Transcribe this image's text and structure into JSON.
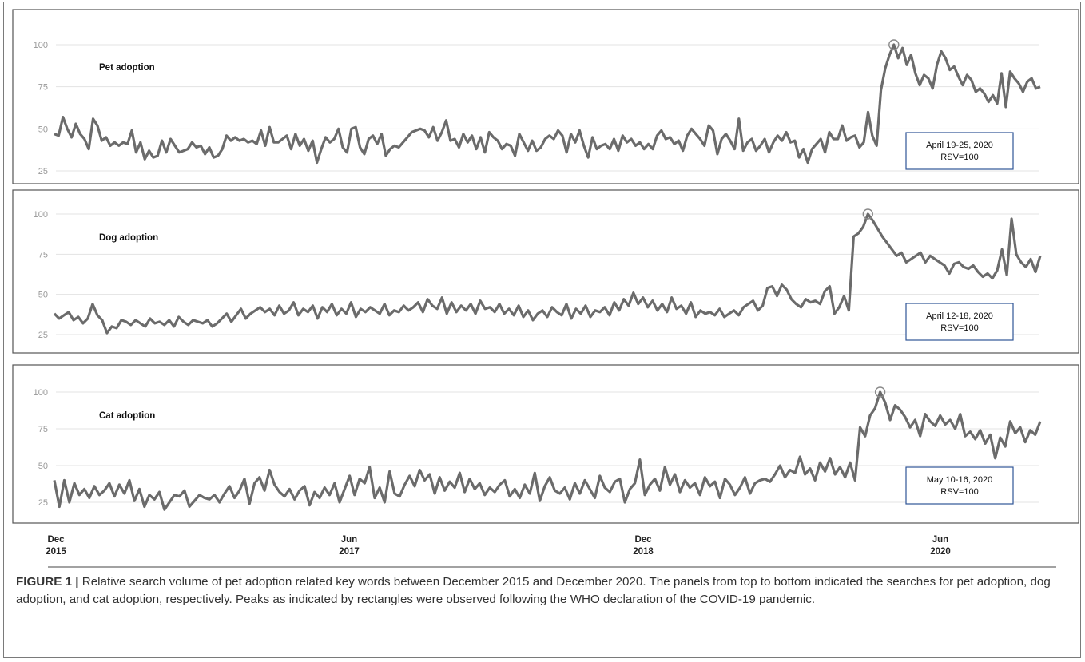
{
  "chart_data": [
    {
      "type": "line",
      "title": "Pet adoption",
      "yticks": [
        "100",
        "75",
        "50",
        "25"
      ],
      "ylim": [
        25,
        100
      ],
      "grid": true,
      "xlim": [
        "2015-12",
        "2020-12"
      ],
      "peak": {
        "date": "April 19-25, 2020",
        "value": 100
      },
      "annotation": [
        "April 19-25, 2020",
        "RSV=100"
      ],
      "series": [
        {
          "values": [
            47,
            46,
            57,
            50,
            45,
            53,
            47,
            44,
            38,
            56,
            52,
            43,
            45,
            40,
            42,
            40,
            42,
            41,
            49,
            36,
            42,
            32,
            37,
            33,
            34,
            43,
            36,
            44,
            40,
            36,
            37,
            38,
            42,
            39,
            40,
            35,
            39,
            33,
            34,
            38,
            46,
            43,
            45,
            43,
            44,
            42,
            43,
            41,
            49,
            40,
            51,
            42,
            42,
            44,
            46,
            38,
            47,
            40,
            44,
            37,
            43,
            30,
            38,
            45,
            42,
            44,
            50,
            39,
            36,
            50,
            51,
            39,
            35,
            44,
            46,
            41,
            47,
            34,
            38,
            40,
            39,
            42,
            45,
            48,
            49,
            50,
            49,
            45,
            51,
            43,
            48,
            55,
            43,
            44,
            39,
            47,
            42,
            46,
            38,
            45,
            36,
            48,
            45,
            43,
            38,
            41,
            40,
            34,
            47,
            42,
            37,
            43,
            37,
            39,
            44,
            46,
            44,
            49,
            46,
            36,
            47,
            42,
            49,
            40,
            33,
            45,
            38,
            40,
            41,
            38,
            44,
            37,
            46,
            42,
            44,
            40,
            42,
            38,
            41,
            38,
            46,
            49,
            44,
            45,
            41,
            43,
            37,
            46,
            50,
            47,
            44,
            40,
            52,
            49,
            35,
            44,
            47,
            43,
            38,
            56,
            37,
            42,
            44,
            37,
            40,
            44,
            36,
            42,
            46,
            43,
            48,
            42,
            43,
            33,
            38,
            30,
            38,
            41,
            44,
            36,
            48,
            44,
            44,
            52,
            43,
            45,
            46,
            39,
            42,
            60,
            46,
            40,
            73,
            86,
            94,
            100,
            92,
            98,
            88,
            94,
            83,
            76,
            82,
            80,
            74,
            88,
            96,
            92,
            85,
            87,
            81,
            76,
            82,
            79,
            72,
            74,
            71,
            66,
            70,
            65,
            83,
            63,
            84,
            80,
            77,
            72,
            78,
            80,
            74,
            75
          ]
        }
      ]
    },
    {
      "type": "line",
      "title": "Dog adoption",
      "yticks": [
        "100",
        "75",
        "50",
        "25"
      ],
      "ylim": [
        25,
        100
      ],
      "grid": true,
      "xlim": [
        "2015-12",
        "2020-12"
      ],
      "peak": {
        "date": "April 12-18, 2020",
        "value": 100
      },
      "annotation": [
        "April 12-18, 2020",
        "RSV=100"
      ],
      "series": [
        {
          "values": [
            38,
            35,
            37,
            39,
            34,
            36,
            32,
            35,
            44,
            37,
            34,
            26,
            30,
            29,
            34,
            33,
            31,
            34,
            32,
            30,
            35,
            32,
            33,
            31,
            34,
            30,
            36,
            33,
            31,
            34,
            33,
            32,
            34,
            30,
            32,
            35,
            38,
            33,
            37,
            41,
            35,
            38,
            40,
            42,
            39,
            41,
            37,
            43,
            38,
            40,
            45,
            37,
            41,
            39,
            43,
            35,
            42,
            39,
            44,
            37,
            41,
            38,
            45,
            36,
            41,
            39,
            42,
            40,
            38,
            44,
            37,
            40,
            39,
            43,
            40,
            42,
            45,
            39,
            47,
            43,
            41,
            48,
            38,
            45,
            39,
            43,
            40,
            44,
            38,
            46,
            41,
            42,
            39,
            44,
            38,
            41,
            37,
            43,
            36,
            40,
            34,
            38,
            40,
            36,
            42,
            39,
            37,
            44,
            35,
            41,
            38,
            43,
            36,
            40,
            39,
            42,
            37,
            45,
            40,
            47,
            43,
            51,
            44,
            48,
            42,
            46,
            40,
            44,
            39,
            48,
            41,
            43,
            38,
            45,
            36,
            40,
            38,
            39,
            37,
            41,
            36,
            38,
            40,
            37,
            42,
            44,
            46,
            40,
            43,
            54,
            55,
            49,
            56,
            53,
            47,
            44,
            42,
            47,
            45,
            46,
            44,
            52,
            55,
            38,
            42,
            49,
            40,
            86,
            88,
            92,
            100,
            96,
            91,
            86,
            82,
            78,
            74,
            76,
            70,
            72,
            74,
            76,
            70,
            74,
            72,
            70,
            68,
            63,
            69,
            70,
            67,
            66,
            68,
            64,
            61,
            63,
            60,
            65,
            78,
            62,
            97,
            75,
            70,
            67,
            72,
            64,
            74
          ]
        }
      ]
    },
    {
      "type": "line",
      "title": "Cat adoption",
      "yticks": [
        "100",
        "75",
        "50",
        "25"
      ],
      "ylim": [
        25,
        100
      ],
      "grid": true,
      "xlim": [
        "2015-12",
        "2020-12"
      ],
      "peak": {
        "date": "May 10-16, 2020",
        "value": 100
      },
      "annotation": [
        "May 10-16, 2020",
        "RSV=100"
      ],
      "series": [
        {
          "values": [
            40,
            22,
            40,
            25,
            38,
            30,
            34,
            28,
            36,
            30,
            33,
            38,
            29,
            37,
            31,
            40,
            26,
            34,
            22,
            30,
            27,
            32,
            20,
            25,
            30,
            29,
            33,
            22,
            26,
            30,
            28,
            27,
            30,
            25,
            31,
            36,
            28,
            33,
            41,
            24,
            38,
            42,
            33,
            47,
            37,
            32,
            29,
            34,
            27,
            33,
            36,
            23,
            32,
            28,
            35,
            30,
            38,
            25,
            34,
            43,
            30,
            41,
            38,
            49,
            28,
            35,
            25,
            46,
            31,
            29,
            37,
            43,
            36,
            47,
            40,
            44,
            31,
            42,
            33,
            39,
            35,
            45,
            32,
            41,
            34,
            38,
            30,
            35,
            32,
            37,
            40,
            29,
            34,
            28,
            37,
            31,
            45,
            26,
            36,
            42,
            33,
            31,
            35,
            27,
            38,
            31,
            40,
            34,
            28,
            43,
            35,
            32,
            39,
            41,
            25,
            34,
            38,
            54,
            30,
            37,
            41,
            33,
            49,
            37,
            44,
            32,
            40,
            35,
            38,
            30,
            42,
            36,
            39,
            28,
            41,
            37,
            30,
            35,
            42,
            31,
            38,
            40,
            41,
            39,
            44,
            50,
            42,
            47,
            45,
            56,
            44,
            48,
            40,
            52,
            46,
            55,
            44,
            49,
            42,
            52,
            40,
            76,
            70,
            84,
            89,
            100,
            93,
            81,
            91,
            88,
            83,
            76,
            81,
            70,
            85,
            80,
            77,
            84,
            78,
            81,
            75,
            85,
            70,
            73,
            68,
            74,
            65,
            71,
            55,
            69,
            63,
            80,
            72,
            76,
            66,
            74,
            71,
            80
          ]
        }
      ]
    }
  ],
  "x_axis": {
    "ticks": [
      {
        "month": "Dec",
        "year": "2015"
      },
      {
        "month": "Jun",
        "year": "2017"
      },
      {
        "month": "Dec",
        "year": "2018"
      },
      {
        "month": "Jun",
        "year": "2020"
      }
    ]
  },
  "caption": {
    "label": "FIGURE 1 |",
    "text": "Relative search volume of pet adoption related key words between December 2015 and December 2020. The panels from top to bottom indicated the searches for pet adoption, dog adoption, and cat adoption, respectively. Peaks as indicated by rectangles were observed following the WHO declaration of the COVID-19 pandemic."
  },
  "colors": {
    "line": "#6b6b6b",
    "grid": "#e3e3e3",
    "box": "#2f5597",
    "peak_marker": "#8a8a8a"
  }
}
